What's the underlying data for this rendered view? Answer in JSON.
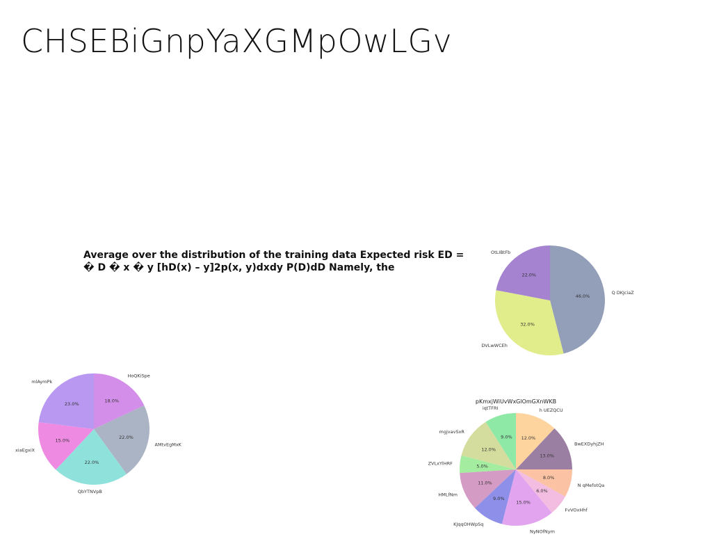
{
  "page": {
    "title": "CHSEBiGnpYaXGMpOwLGv",
    "body_text": "Average over the distribution of the training data Expected risk ED = � D � x � y [hD(x) – y]2p(x, y)dxdy P(D)dD Namely, the"
  },
  "chart_data": [
    {
      "type": "pie",
      "title": "",
      "labels": [
        "Q DKJciaZ",
        "DVLwWCEh",
        "OtLIBtFb"
      ],
      "values": [
        46.0,
        32.0,
        22.0
      ],
      "colors": [
        "#939fb8",
        "#e1ec8a",
        "#a583d1"
      ],
      "startangle": 90
    },
    {
      "type": "pie",
      "title": "",
      "labels": [
        "HoQKiSpe",
        "AMtvEgMxK",
        "QbYTNVpB",
        "xiaEgxiX",
        "mlAymPk"
      ],
      "values": [
        18.0,
        22.0,
        22.0,
        15.0,
        23.0
      ],
      "colors": [
        "#d28ee8",
        "#abb4c4",
        "#8fe2dc",
        "#ee8ae2",
        "#b898f0"
      ],
      "startangle": 90
    },
    {
      "type": "pie",
      "title": "pKmxjWiUvWxGlOmGXnWKB",
      "labels": [
        "h UEZQCU",
        "BwEXDyhjZH",
        "N qMefotQa",
        "FvVOxHhf",
        "NyNOfNym",
        "KJqqOHWpSq",
        "HMLfNm",
        "ZVLxYlHRF",
        "mgjvavSxR",
        "iqtTFRI"
      ],
      "values": [
        12.0,
        13.0,
        8.0,
        6.0,
        15.0,
        9.0,
        11.0,
        5.0,
        12.0,
        9.0
      ],
      "colors": [
        "#fdd49e",
        "#9b7fa3",
        "#fbc3a3",
        "#f2bde0",
        "#e2a3ef",
        "#8d8fe8",
        "#d49bc4",
        "#a4ec9f",
        "#d5dd9e",
        "#8fe9a6"
      ],
      "startangle": 90
    }
  ]
}
